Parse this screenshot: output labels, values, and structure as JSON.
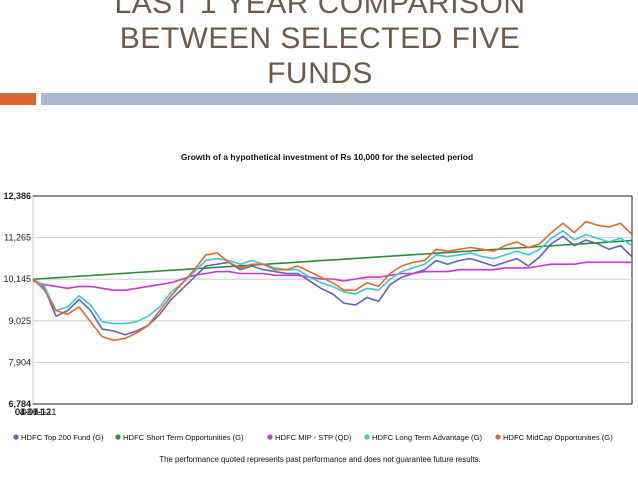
{
  "slide": {
    "title_lines": [
      "LAST 1 YEAR COMPARISON",
      "BETWEEN SELECTED FIVE",
      "FUNDS"
    ],
    "accent_colors": {
      "orange": "#d9662f",
      "blue": "#a8b9d1",
      "title": "#6f5a4c"
    }
  },
  "chart_data": {
    "type": "line",
    "title": "Growth of a hypothetical investment of Rs 10,000 for the selected period",
    "footnote": "The performance quoted represents past performance and does not guarantee future results.",
    "xlabel": "",
    "ylabel": "",
    "ylim": [
      6784,
      12386
    ],
    "y_ticks": [
      "12,386",
      "11,265",
      "10,145",
      "9,025",
      "7,904",
      "6,784"
    ],
    "x_ticks": [
      "03-11-11",
      "03-01-12",
      "04-03-12",
      "04-05-12",
      "04-07-12",
      "03-09-12"
    ],
    "grid": true,
    "legend_position": "bottom",
    "x": [
      "03-11-11",
      "10-11-11",
      "17-11-11",
      "24-11-11",
      "01-12-11",
      "08-12-11",
      "15-12-11",
      "22-12-11",
      "29-12-11",
      "05-01-12",
      "12-01-12",
      "19-01-12",
      "26-01-12",
      "02-02-12",
      "09-02-12",
      "16-02-12",
      "23-02-12",
      "01-03-12",
      "08-03-12",
      "15-03-12",
      "22-03-12",
      "29-03-12",
      "05-04-12",
      "12-04-12",
      "19-04-12",
      "26-04-12",
      "03-05-12",
      "10-05-12",
      "17-05-12",
      "24-05-12",
      "31-05-12",
      "07-06-12",
      "14-06-12",
      "21-06-12",
      "28-06-12",
      "05-07-12",
      "12-07-12",
      "19-07-12",
      "26-07-12",
      "02-08-12",
      "09-08-12",
      "16-08-12",
      "23-08-12",
      "30-08-12",
      "06-09-12",
      "13-09-12",
      "20-09-12",
      "27-09-12",
      "04-10-12",
      "11-10-12",
      "18-10-12",
      "25-10-12",
      "01-11-12"
    ],
    "series": [
      {
        "name": "HDFC Top 200 Fund (G)",
        "color": "#5b63c8",
        "values": [
          10150,
          9900,
          9150,
          9300,
          9600,
          9300,
          8800,
          8750,
          8650,
          8750,
          8900,
          9200,
          9600,
          9900,
          10200,
          10500,
          10550,
          10600,
          10400,
          10500,
          10400,
          10350,
          10300,
          10300,
          10100,
          9900,
          9750,
          9500,
          9450,
          9650,
          9550,
          10000,
          10200,
          10300,
          10400,
          10650,
          10550,
          10650,
          10700,
          10600,
          10500,
          10600,
          10700,
          10500,
          10750,
          11100,
          11300,
          11050,
          11200,
          11100,
          10950,
          11050,
          10750
        ]
      },
      {
        "name": "HDFC Short Term Opportunities (G)",
        "color": "#2e8b3e",
        "values": [
          10145,
          10165,
          10185,
          10205,
          10225,
          10245,
          10265,
          10285,
          10305,
          10325,
          10345,
          10365,
          10385,
          10405,
          10425,
          10445,
          10465,
          10485,
          10505,
          10525,
          10545,
          10565,
          10585,
          10605,
          10625,
          10645,
          10665,
          10685,
          10705,
          10725,
          10745,
          10765,
          10785,
          10805,
          10825,
          10845,
          10865,
          10885,
          10905,
          10925,
          10945,
          10965,
          10985,
          11005,
          11025,
          11045,
          11065,
          11085,
          11105,
          11125,
          11145,
          11165,
          11185
        ]
      },
      {
        "name": "HDFC MIP - STP (QD)",
        "color": "#c23bd4",
        "values": [
          10100,
          10000,
          9950,
          9900,
          9950,
          9950,
          9900,
          9850,
          9850,
          9900,
          9950,
          10000,
          10050,
          10150,
          10250,
          10300,
          10350,
          10350,
          10300,
          10300,
          10300,
          10250,
          10250,
          10250,
          10200,
          10150,
          10150,
          10100,
          10150,
          10200,
          10200,
          10250,
          10300,
          10300,
          10350,
          10350,
          10350,
          10400,
          10400,
          10400,
          10400,
          10450,
          10450,
          10450,
          10500,
          10550,
          10550,
          10550,
          10600,
          10600,
          10600,
          10600,
          10600
        ]
      },
      {
        "name": "HDFC Long Term Advantage (G)",
        "color": "#3cc7d6",
        "values": [
          10150,
          9950,
          9300,
          9400,
          9700,
          9450,
          9000,
          8950,
          8950,
          9000,
          9150,
          9400,
          9800,
          10050,
          10350,
          10650,
          10700,
          10650,
          10550,
          10650,
          10550,
          10450,
          10400,
          10400,
          10200,
          10050,
          9950,
          9800,
          9750,
          9900,
          9850,
          10150,
          10350,
          10450,
          10550,
          10800,
          10750,
          10800,
          10850,
          10750,
          10700,
          10800,
          10900,
          10800,
          10950,
          11250,
          11450,
          11200,
          11350,
          11250,
          11150,
          11250,
          11050
        ]
      },
      {
        "name": "HDFC MidCap Opportunities (G)",
        "color": "#e36a2a",
        "values": [
          10150,
          9850,
          9300,
          9200,
          9400,
          9000,
          8600,
          8500,
          8550,
          8700,
          8900,
          9300,
          9700,
          10050,
          10400,
          10800,
          10850,
          10600,
          10450,
          10550,
          10550,
          10400,
          10400,
          10500,
          10350,
          10200,
          10050,
          9850,
          9850,
          10050,
          9950,
          10300,
          10500,
          10600,
          10650,
          10950,
          10900,
          10950,
          11000,
          10950,
          10900,
          11050,
          11150,
          11000,
          11100,
          11400,
          11650,
          11400,
          11700,
          11600,
          11550,
          11650,
          11350
        ]
      }
    ]
  }
}
